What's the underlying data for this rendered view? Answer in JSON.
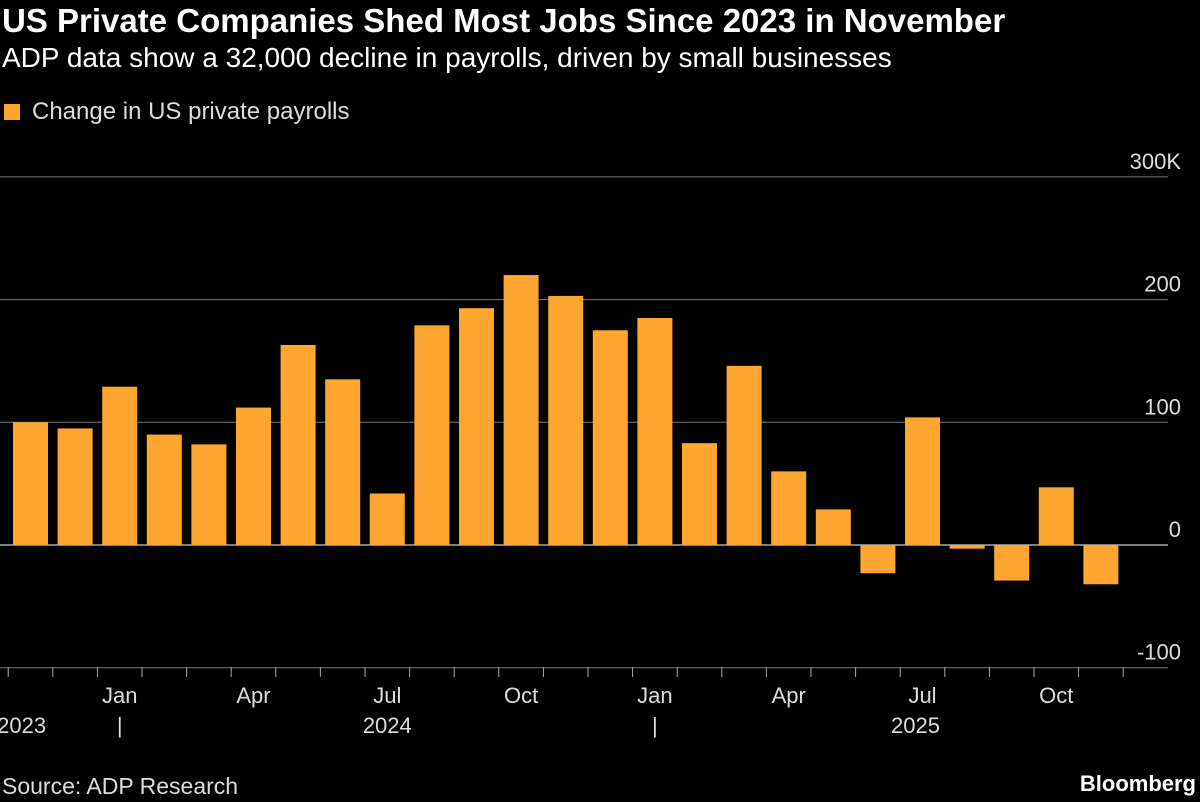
{
  "title": "US Private Companies Shed Most Jobs Since 2023 in November",
  "subtitle": "ADP data show a 32,000 decline in payrolls, driven by small businesses",
  "source": "Source: ADP Research",
  "brand": "Bloomberg",
  "chart_data": {
    "type": "bar",
    "legend": [
      "Change in US private payrolls"
    ],
    "legend_position": "top-left",
    "bar_color": "#FFA630",
    "categories": [
      "Nov 2023",
      "Dec 2023",
      "Jan 2024",
      "Feb 2024",
      "Mar 2024",
      "Apr 2024",
      "May 2024",
      "Jun 2024",
      "Jul 2024",
      "Aug 2024",
      "Sep 2024",
      "Oct 2024",
      "Nov 2024",
      "Dec 2024",
      "Jan 2025",
      "Feb 2025",
      "Mar 2025",
      "Apr 2025",
      "May 2025",
      "Jun 2025",
      "Jul 2025",
      "Aug 2025",
      "Sep 2025",
      "Oct 2025",
      "Nov 2025"
    ],
    "series": [
      {
        "name": "Change in US private payrolls",
        "values": [
          100,
          95,
          129,
          90,
          82,
          112,
          163,
          135,
          42,
          179,
          193,
          220,
          203,
          175,
          185,
          83,
          146,
          60,
          29,
          -23,
          104,
          -3,
          -29,
          47,
          -32
        ]
      }
    ],
    "ylim": [
      -100,
      300
    ],
    "yticks": [
      {
        "value": 300,
        "label": "300K"
      },
      {
        "value": 200,
        "label": "200"
      },
      {
        "value": 100,
        "label": "100"
      },
      {
        "value": 0,
        "label": "0"
      },
      {
        "value": -100,
        "label": "-100"
      }
    ],
    "xtick_labels": [
      {
        "index": 2,
        "label": "Jan"
      },
      {
        "index": 5,
        "label": "Apr"
      },
      {
        "index": 8,
        "label": "Jul"
      },
      {
        "index": 11,
        "label": "Oct"
      },
      {
        "index": 14,
        "label": "Jan"
      },
      {
        "index": 17,
        "label": "Apr"
      },
      {
        "index": 20,
        "label": "Jul"
      },
      {
        "index": 23,
        "label": "Oct"
      }
    ],
    "year_labels": [
      {
        "label": "2023",
        "sep_index": 2
      },
      {
        "label": "2024",
        "center_index": 8
      },
      {
        "label": "2025",
        "center_index": 20,
        "sep_index": 14
      }
    ],
    "grid": true,
    "y_axis_side": "right"
  }
}
